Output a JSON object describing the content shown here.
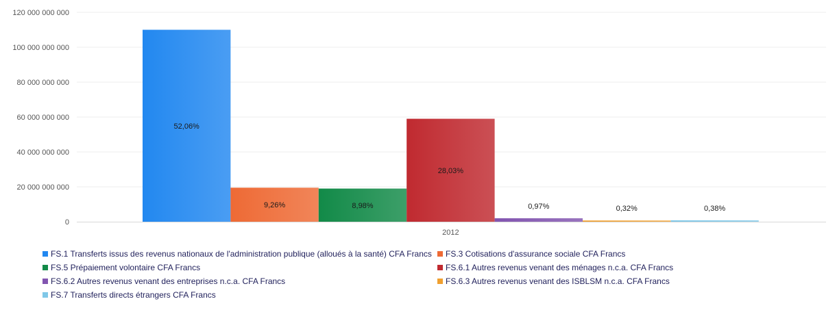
{
  "chart_data": {
    "type": "bar",
    "categories": [
      "2012"
    ],
    "ylim": [
      0,
      120000000000
    ],
    "y_ticks": [
      0,
      20000000000,
      40000000000,
      60000000000,
      80000000000,
      100000000000,
      120000000000
    ],
    "y_tick_labels": [
      "0",
      "20 000 000 000",
      "40 000 000 000",
      "60 000 000 000",
      "80 000 000 000",
      "100 000 000 000",
      "120 000 000 000"
    ],
    "grid": true,
    "legend_position": "bottom",
    "series": [
      {
        "name": "FS.1 Transferts issus des revenus nationaux de l'administration publique (alloués à la santé) CFA Francs",
        "values": [
          110000000000
        ],
        "label": "52,06%",
        "color": "#2288f0"
      },
      {
        "name": "FS.3 Cotisations d'assurance sociale CFA Francs",
        "values": [
          19500000000
        ],
        "label": "9,26%",
        "color": "#ee6a35"
      },
      {
        "name": "FS.5 Prépaiement volontaire CFA Francs",
        "values": [
          19000000000
        ],
        "label": "8,98%",
        "color": "#128a48"
      },
      {
        "name": "FS.6.1 Autres revenus venant des ménages n.c.a. CFA Francs",
        "values": [
          59000000000
        ],
        "label": "28,03%",
        "color": "#c02a30"
      },
      {
        "name": "FS.6.2 Autres revenus venant des entreprises n.c.a. CFA Francs",
        "values": [
          2000000000
        ],
        "label": "0,97%",
        "color": "#8255b0"
      },
      {
        "name": "FS.6.3 Autres revenus venant des ISBLSM n.c.a. CFA Francs",
        "values": [
          700000000
        ],
        "label": "0,32%",
        "color": "#f0a030"
      },
      {
        "name": "FS.7 Transferts directs étrangers  CFA Francs",
        "values": [
          800000000
        ],
        "label": "0,38%",
        "color": "#80c8e8"
      }
    ]
  }
}
